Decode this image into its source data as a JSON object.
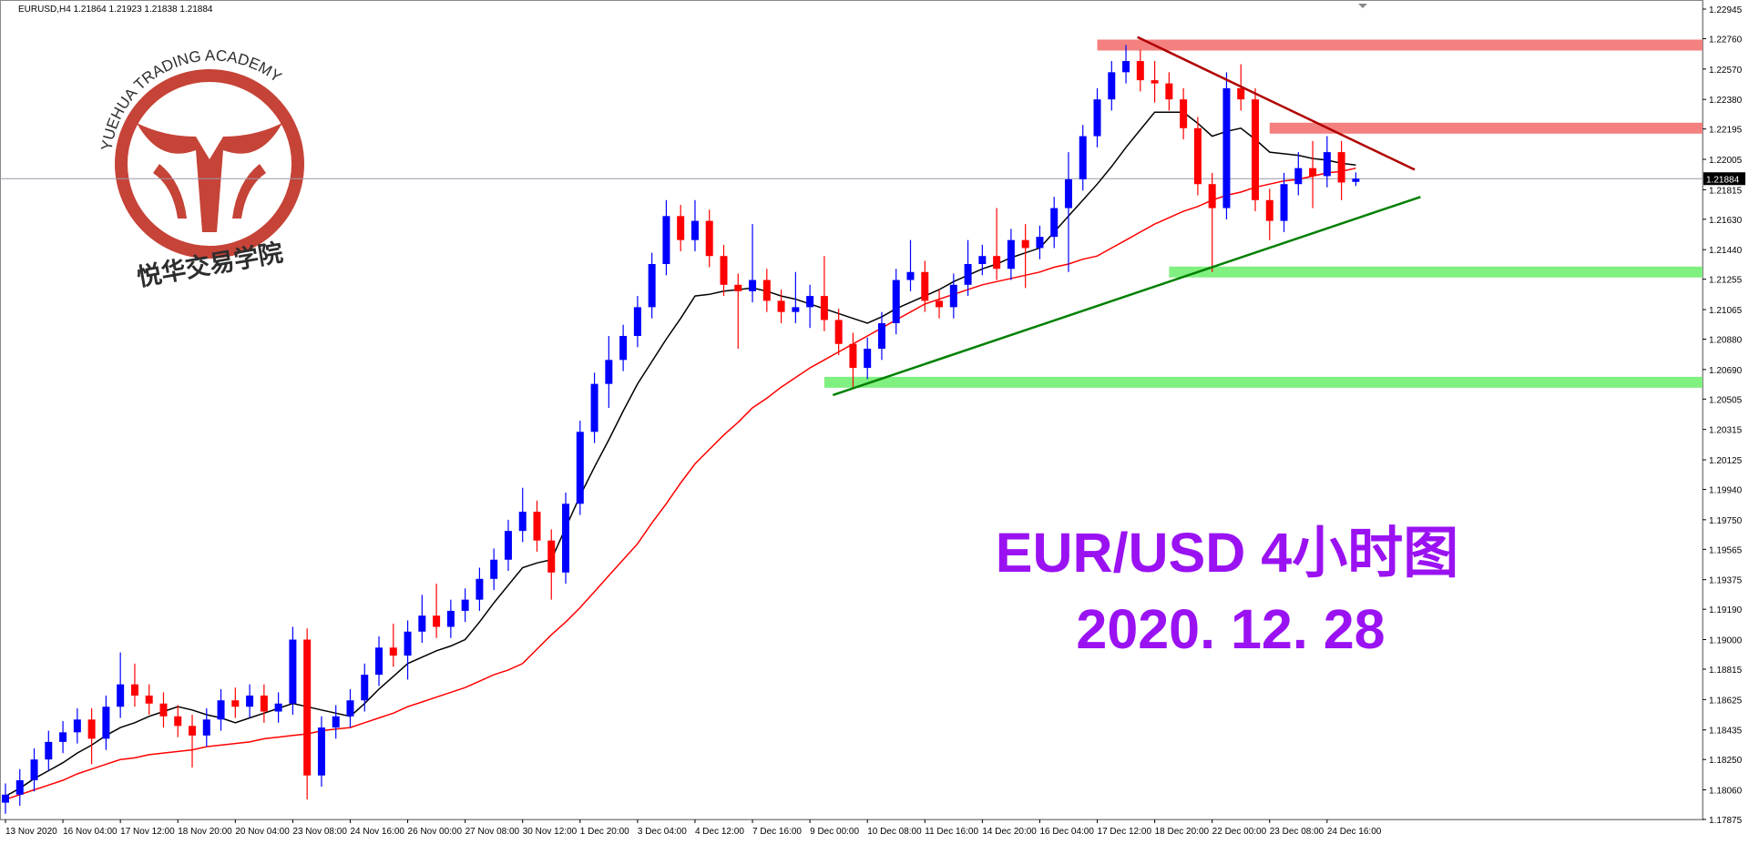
{
  "chart_data": {
    "type": "candlestick",
    "title": "EURUSD,H4  1.21864 1.21923 1.21838 1.21884",
    "up_color": "#0000ff",
    "down_color": "#ff0000",
    "ylim": [
      1.17875,
      1.22945
    ],
    "yticks": [
      1.22945,
      {
        "value": 1.2276,
        "label": "1.22760"
      },
      {
        "value": 1.2257,
        "label": "1.22570"
      },
      {
        "value": 1.2238,
        "label": "1.22380"
      },
      1.22195,
      1.22005,
      1.21815,
      {
        "value": 1.2163,
        "label": "1.21630"
      },
      {
        "value": 1.2144,
        "label": "1.21440"
      },
      1.21255,
      1.21065,
      {
        "value": 1.2088,
        "label": "1.20880"
      },
      {
        "value": 1.2069,
        "label": "1.20690"
      },
      1.20505,
      1.20315,
      1.20125,
      {
        "value": 1.1994,
        "label": "1.19940"
      },
      {
        "value": 1.1975,
        "label": "1.19750"
      },
      1.19565,
      1.19375,
      {
        "value": 1.1919,
        "label": "1.19190"
      },
      {
        "value": 1.19,
        "label": "1.19000"
      },
      1.18815,
      1.18625,
      1.18435,
      {
        "value": 1.1825,
        "label": "1.18250"
      },
      {
        "value": 1.1806,
        "label": "1.18060"
      },
      1.17875
    ],
    "categories": [
      "13 Nov 2020",
      null,
      null,
      null,
      "16 Nov 04:00",
      null,
      null,
      null,
      "17 Nov 12:00",
      null,
      null,
      null,
      "18 Nov 20:00",
      null,
      null,
      null,
      "20 Nov 04:00",
      null,
      null,
      null,
      "23 Nov 08:00",
      null,
      null,
      null,
      "24 Nov 16:00",
      null,
      null,
      null,
      "26 Nov 00:00",
      null,
      null,
      null,
      "27 Nov 08:00",
      null,
      null,
      null,
      "30 Nov 12:00",
      null,
      null,
      null,
      "1 Dec 20:00",
      null,
      null,
      null,
      "3 Dec 04:00",
      null,
      null,
      null,
      "4 Dec 12:00",
      null,
      null,
      null,
      "7 Dec 16:00",
      null,
      null,
      null,
      "9 Dec 00:00",
      null,
      null,
      null,
      "10 Dec 08:00",
      null,
      null,
      null,
      "11 Dec 16:00",
      null,
      null,
      null,
      "14 Dec 20:00",
      null,
      null,
      null,
      "16 Dec 04:00",
      null,
      null,
      null,
      "17 Dec 12:00",
      null,
      null,
      null,
      "18 Dec 20:00",
      null,
      null,
      null,
      "22 Dec 00:00",
      null,
      null,
      null,
      "23 Dec 08:00",
      null,
      null,
      null,
      "24 Dec 16:00",
      null,
      null
    ],
    "open": [
      1.1798,
      1.1803,
      1.1812,
      1.1825,
      1.1836,
      1.1842,
      1.185,
      1.1838,
      1.1858,
      1.1872,
      1.1865,
      1.186,
      1.1852,
      1.1846,
      1.184,
      1.185,
      1.1862,
      1.1858,
      1.1865,
      1.1855,
      1.186,
      1.19,
      1.1815,
      1.1845,
      1.1852,
      1.1862,
      1.1878,
      1.1895,
      1.189,
      1.1905,
      1.1915,
      1.1908,
      1.1918,
      1.1925,
      1.1938,
      1.195,
      1.1968,
      1.198,
      1.1962,
      1.1942,
      1.1985,
      1.203,
      1.206,
      1.2075,
      1.209,
      1.2108,
      1.2135,
      1.2165,
      1.215,
      1.2162,
      1.214,
      1.2122,
      1.2118,
      1.2125,
      1.2112,
      1.2105,
      1.2108,
      1.2115,
      1.21,
      1.2085,
      1.207,
      1.2082,
      1.2098,
      1.2125,
      1.213,
      1.2112,
      1.2108,
      1.2122,
      1.2135,
      1.214,
      1.2132,
      1.215,
      1.2145,
      1.2152,
      1.217,
      1.2188,
      1.2215,
      1.2238,
      1.2255,
      1.2262,
      1.225,
      1.2248,
      1.2238,
      1.222,
      1.2185,
      1.217,
      1.2245,
      1.2238,
      1.2175,
      1.2162,
      1.2185,
      1.2195,
      1.219,
      1.2205,
      1.21864
    ],
    "high": [
      1.181,
      1.1819,
      1.1832,
      1.1843,
      1.1849,
      1.1857,
      1.1857,
      1.1865,
      1.1892,
      1.1885,
      1.1872,
      1.1867,
      1.1859,
      1.1853,
      1.1857,
      1.1869,
      1.187,
      1.1872,
      1.1872,
      1.1867,
      1.1908,
      1.1907,
      1.1852,
      1.1859,
      1.1869,
      1.1885,
      1.1902,
      1.191,
      1.1912,
      1.1928,
      1.1935,
      1.1925,
      1.1932,
      1.1945,
      1.1957,
      1.1975,
      1.1995,
      1.1987,
      1.1969,
      1.1992,
      1.2037,
      1.2067,
      1.209,
      1.2097,
      1.2115,
      1.2142,
      1.2175,
      1.2172,
      1.2175,
      1.2169,
      1.2147,
      1.2129,
      1.216,
      1.2132,
      1.2119,
      1.213,
      1.2122,
      1.214,
      1.2107,
      1.2092,
      1.2089,
      1.2105,
      1.2132,
      1.215,
      1.2137,
      1.2119,
      1.2129,
      1.215,
      1.2147,
      1.217,
      1.2157,
      1.216,
      1.2159,
      1.2177,
      1.2205,
      1.2222,
      1.2245,
      1.2262,
      1.2272,
      1.2269,
      1.2262,
      1.2255,
      1.2245,
      1.2227,
      1.2192,
      1.2255,
      1.226,
      1.2245,
      1.2182,
      1.2192,
      1.2205,
      1.2212,
      1.2215,
      1.2212,
      1.21923
    ],
    "low": [
      1.1791,
      1.1796,
      1.1805,
      1.1818,
      1.1829,
      1.1835,
      1.1822,
      1.1831,
      1.1851,
      1.1858,
      1.1853,
      1.1845,
      1.1839,
      1.182,
      1.1833,
      1.1843,
      1.1851,
      1.1851,
      1.1848,
      1.1848,
      1.1853,
      1.18,
      1.1808,
      1.1838,
      1.1845,
      1.1855,
      1.1871,
      1.1883,
      1.1875,
      1.1898,
      1.1901,
      1.1901,
      1.1911,
      1.1918,
      1.1931,
      1.1943,
      1.1961,
      1.1955,
      1.1925,
      1.1935,
      1.1978,
      1.2023,
      1.2045,
      1.2068,
      1.2083,
      1.2101,
      1.2128,
      1.2143,
      1.2143,
      1.2133,
      1.2115,
      1.2082,
      1.2111,
      1.2105,
      1.2098,
      1.2098,
      1.2095,
      1.2093,
      1.2078,
      1.2058,
      1.2063,
      1.2075,
      1.2091,
      1.2118,
      1.2105,
      1.2101,
      1.2101,
      1.2115,
      1.2128,
      1.2125,
      1.2125,
      1.212,
      1.2138,
      1.2145,
      1.213,
      1.2181,
      1.2208,
      1.2231,
      1.2248,
      1.2243,
      1.2236,
      1.2231,
      1.2213,
      1.2178,
      1.213,
      1.2163,
      1.2231,
      1.2168,
      1.215,
      1.2155,
      1.2178,
      1.217,
      1.2183,
      1.2175,
      1.21838
    ],
    "close": [
      1.1803,
      1.1812,
      1.1825,
      1.1836,
      1.1842,
      1.185,
      1.1838,
      1.1858,
      1.1872,
      1.1865,
      1.186,
      1.1852,
      1.1846,
      1.184,
      1.185,
      1.1862,
      1.1858,
      1.1865,
      1.1855,
      1.186,
      1.19,
      1.1815,
      1.1845,
      1.1852,
      1.1862,
      1.1878,
      1.1895,
      1.189,
      1.1905,
      1.1915,
      1.1908,
      1.1918,
      1.1925,
      1.1938,
      1.195,
      1.1968,
      1.198,
      1.1962,
      1.1942,
      1.1985,
      1.203,
      1.206,
      1.2075,
      1.209,
      1.2108,
      1.2135,
      1.2165,
      1.215,
      1.2162,
      1.214,
      1.2122,
      1.2118,
      1.2125,
      1.2112,
      1.2105,
      1.2108,
      1.2115,
      1.21,
      1.2085,
      1.207,
      1.2082,
      1.2098,
      1.2125,
      1.213,
      1.2112,
      1.2108,
      1.2122,
      1.2135,
      1.214,
      1.2132,
      1.215,
      1.2145,
      1.2152,
      1.217,
      1.2188,
      1.2215,
      1.2238,
      1.2255,
      1.2262,
      1.225,
      1.2248,
      1.2238,
      1.222,
      1.2185,
      1.217,
      1.2245,
      1.2238,
      1.2175,
      1.2162,
      1.2185,
      1.2195,
      1.219,
      1.2205,
      1.2186,
      1.21884
    ],
    "ma": [
      {
        "color": "#000000",
        "values": [
          1.1802,
          1.1807,
          1.1813,
          1.1818,
          1.1823,
          1.1829,
          1.1834,
          1.184,
          1.1845,
          1.1848,
          1.1852,
          1.1855,
          1.1858,
          1.1856,
          1.1853,
          1.1851,
          1.1848,
          1.1851,
          1.1854,
          1.1857,
          1.186,
          1.1858,
          1.1856,
          1.1854,
          1.1852,
          1.186,
          1.1869,
          1.1877,
          1.1885,
          1.1889,
          1.1893,
          1.1896,
          1.19,
          1.1911,
          1.1923,
          1.1934,
          1.1945,
          1.1948,
          1.195,
          1.197,
          1.199,
          1.2008,
          1.2025,
          1.2043,
          1.206,
          1.2074,
          1.2088,
          1.2101,
          1.2115,
          1.2116,
          1.2118,
          1.2119,
          1.212,
          1.2118,
          1.2115,
          1.2113,
          1.211,
          1.2107,
          1.2104,
          1.2101,
          1.2098,
          1.2102,
          1.2107,
          1.2111,
          1.2115,
          1.2119,
          1.2124,
          1.2128,
          1.2132,
          1.2135,
          1.2139,
          1.2142,
          1.2145,
          1.2155,
          1.2165,
          1.2175,
          1.2185,
          1.2196,
          1.2208,
          1.2219,
          1.223,
          1.223,
          1.223,
          1.2223,
          1.2215,
          1.2218,
          1.222,
          1.2213,
          1.2205,
          1.2204,
          1.2203,
          1.2201,
          1.22,
          1.2198,
          1.2197
        ]
      },
      {
        "color": "#ff0000",
        "values": [
          1.18,
          1.1803,
          1.1806,
          1.1809,
          1.1812,
          1.1816,
          1.1819,
          1.1822,
          1.1825,
          1.1826,
          1.1828,
          1.1829,
          1.183,
          1.1831,
          1.1833,
          1.1834,
          1.1835,
          1.1836,
          1.1838,
          1.1839,
          1.184,
          1.1841,
          1.1843,
          1.1844,
          1.1845,
          1.1848,
          1.1851,
          1.1854,
          1.1858,
          1.1861,
          1.1864,
          1.1867,
          1.187,
          1.1874,
          1.1878,
          1.1881,
          1.1885,
          1.1894,
          1.1903,
          1.1911,
          1.192,
          1.193,
          1.194,
          1.195,
          1.196,
          1.1973,
          1.1985,
          1.1998,
          1.201,
          1.2019,
          1.2028,
          1.2036,
          1.2045,
          1.2051,
          1.2058,
          1.2064,
          1.207,
          1.2075,
          1.208,
          1.2085,
          1.209,
          1.2095,
          1.21,
          1.2105,
          1.211,
          1.2113,
          1.2116,
          1.2119,
          1.2122,
          1.2124,
          1.2126,
          1.2128,
          1.213,
          1.2133,
          1.2135,
          1.2138,
          1.214,
          1.2145,
          1.215,
          1.2155,
          1.216,
          1.2164,
          1.2168,
          1.2171,
          1.2175,
          1.2178,
          1.218,
          1.2183,
          1.2185,
          1.2187,
          1.2188,
          1.219,
          1.2192,
          1.2193,
          1.2195
        ]
      }
    ],
    "zones": [
      {
        "value": 1.2272,
        "from": 76,
        "color": "#f48080"
      },
      {
        "value": 1.222,
        "from": 88,
        "color": "#f48080"
      },
      {
        "value": 1.213,
        "from": 81,
        "color": "#80f080"
      },
      {
        "value": 1.2061,
        "from": 57,
        "color": "#80f080"
      }
    ],
    "trendlines": [
      {
        "from": [
          78.8,
          1.2277
        ],
        "to": [
          98.1,
          1.2194
        ],
        "color": "#b00000"
      },
      {
        "from": [
          57.6,
          1.2053
        ],
        "to": [
          98.5,
          1.2177
        ],
        "color": "#008000"
      }
    ],
    "annotations": [
      "EUR/USD 4小时图",
      "2020. 12. 28"
    ],
    "logo": {
      "arc_text": "YUEHUA TRADING ACADEMY",
      "name": "悦华交易学院"
    }
  }
}
